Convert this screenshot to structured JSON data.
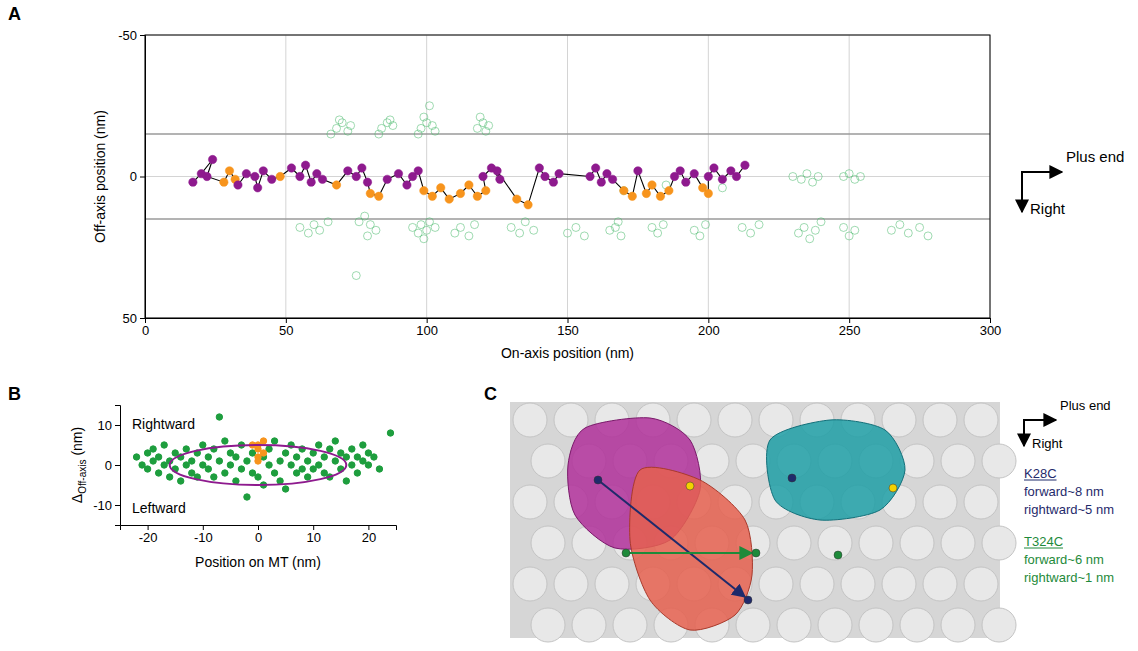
{
  "chart_data": [
    {
      "type": "scatter",
      "panel": "A",
      "x_label": "On-axis position (nm)",
      "y_label": "Off-axis position (nm)",
      "xlim": [
        0,
        300
      ],
      "ylim": [
        -50,
        50
      ],
      "xticks": [
        0,
        50,
        100,
        150,
        200,
        250,
        300
      ],
      "yticks": [
        -50,
        0,
        50
      ],
      "grid": true,
      "reference_lines": [
        -15,
        15
      ],
      "direction_labels": [
        "Plus end",
        "Right"
      ],
      "series": [
        {
          "type": "scatter",
          "color": "#4cbb6e",
          "marker": "open-circle",
          "x": [
            68,
            70,
            72,
            69,
            73,
            66,
            84,
            86,
            88,
            83,
            87,
            98,
            100,
            102,
            99,
            97,
            103,
            101,
            118,
            120,
            122,
            119,
            121,
            55,
            58,
            60,
            62,
            65,
            78,
            80,
            82,
            79,
            76,
            95,
            97,
            98,
            100,
            101,
            99,
            103,
            110,
            112,
            115,
            117,
            130,
            133,
            135,
            138,
            150,
            153,
            156,
            165,
            167,
            169,
            168,
            180,
            182,
            184,
            195,
            197,
            199,
            212,
            215,
            218,
            232,
            234,
            236,
            238,
            240,
            248,
            250,
            252,
            265,
            268,
            271,
            275,
            278,
            230,
            233,
            235,
            237,
            239,
            248,
            250,
            252,
            254,
            75,
            170,
            185,
            205
          ],
          "values": [
            -17,
            -19,
            -16,
            -20,
            -18,
            -15,
            -17,
            -19,
            -18,
            -15,
            -20,
            -17,
            -19,
            -18,
            -21,
            -15,
            -16,
            -25,
            -17,
            -19,
            -18,
            -21,
            -16,
            18,
            20,
            17,
            19,
            16,
            14,
            17,
            19,
            21,
            16,
            18,
            20,
            17,
            19,
            16,
            22,
            18,
            20,
            18,
            21,
            17,
            18,
            20,
            16,
            19,
            20,
            18,
            21,
            19,
            18,
            21,
            16,
            18,
            20,
            17,
            19,
            21,
            17,
            18,
            20,
            17,
            20,
            18,
            22,
            19,
            16,
            18,
            21,
            19,
            19,
            17,
            20,
            18,
            21,
            0,
            1,
            -1,
            2,
            0,
            0,
            -1,
            1,
            0,
            35,
            5,
            3,
            4
          ]
        },
        {
          "type": "line",
          "color": "#000000",
          "marker": "circle",
          "line_style": "solid",
          "x": [
            17,
            20,
            24,
            22,
            28,
            30,
            32,
            33,
            36,
            39,
            40,
            42,
            45,
            48,
            52,
            55,
            57,
            59,
            61,
            63,
            68,
            72,
            75,
            77,
            79,
            80,
            83,
            86,
            90,
            93,
            95,
            97,
            99,
            102,
            105,
            108,
            112,
            115,
            118,
            121,
            120,
            123,
            126,
            125,
            132,
            136,
            140,
            142,
            145,
            147,
            158,
            160,
            162,
            164,
            166,
            170,
            173,
            175,
            178,
            180,
            183,
            186,
            188,
            190,
            192,
            195,
            198,
            200,
            200,
            202,
            205,
            208,
            210,
            213
          ],
          "values": [
            2,
            -1,
            -6,
            0,
            2,
            -2,
            1,
            3,
            -1,
            0,
            4,
            -2,
            1,
            0,
            -3,
            0,
            -4,
            2,
            -1,
            1,
            3,
            -2,
            0,
            -3,
            2,
            6,
            7,
            1,
            -1,
            3,
            0,
            -2,
            5,
            7,
            4,
            8,
            6,
            3,
            7,
            5,
            0,
            -3,
            1,
            -2,
            8,
            10,
            -3,
            0,
            2,
            -1,
            0,
            -3,
            2,
            -1,
            1,
            5,
            7,
            -2,
            6,
            3,
            7,
            5,
            0,
            -2,
            2,
            -1,
            4,
            6,
            0,
            -3,
            1,
            -2,
            0,
            -4
          ],
          "colors": [
            "#8e1a8e",
            "#8e1a8e",
            "#8e1a8e",
            "#8e1a8e",
            "#f7941d",
            "#f7941d",
            "#f7941d",
            "#8e1a8e",
            "#8e1a8e",
            "#8e1a8e",
            "#8e1a8e",
            "#8e1a8e",
            "#8e1a8e",
            "#f7941d",
            "#8e1a8e",
            "#8e1a8e",
            "#8e1a8e",
            "#8e1a8e",
            "#8e1a8e",
            "#8e1a8e",
            "#f7941d",
            "#8e1a8e",
            "#8e1a8e",
            "#8e1a8e",
            "#8e1a8e",
            "#f7941d",
            "#f7941d",
            "#8e1a8e",
            "#8e1a8e",
            "#8e1a8e",
            "#8e1a8e",
            "#8e1a8e",
            "#f7941d",
            "#f7941d",
            "#f7941d",
            "#f7941d",
            "#f7941d",
            "#f7941d",
            "#f7941d",
            "#f7941d",
            "#8e1a8e",
            "#8e1a8e",
            "#8e1a8e",
            "#8e1a8e",
            "#f7941d",
            "#f7941d",
            "#8e1a8e",
            "#8e1a8e",
            "#8e1a8e",
            "#8e1a8e",
            "#8e1a8e",
            "#8e1a8e",
            "#8e1a8e",
            "#8e1a8e",
            "#8e1a8e",
            "#f7941d",
            "#f7941d",
            "#8e1a8e",
            "#f7941d",
            "#f7941d",
            "#f7941d",
            "#f7941d",
            "#8e1a8e",
            "#8e1a8e",
            "#8e1a8e",
            "#8e1a8e",
            "#f7941d",
            "#f7941d",
            "#8e1a8e",
            "#8e1a8e",
            "#8e1a8e",
            "#8e1a8e",
            "#8e1a8e",
            "#8e1a8e"
          ]
        }
      ]
    },
    {
      "type": "scatter",
      "panel": "B",
      "x_label": "Position on MT (nm)",
      "y_label": {
        "text": "Δ",
        "subscript": "Off-axis",
        "suffix": "(nm)"
      },
      "xlim": [
        -25,
        25
      ],
      "ylim": [
        -15,
        15
      ],
      "xticks": [
        -20,
        -10,
        0,
        10,
        20
      ],
      "yticks": [
        -10,
        0,
        10
      ],
      "annotations": [
        "Rightward",
        "Leftward"
      ],
      "ellipse": {
        "center": [
          0,
          0
        ],
        "radii": [
          16,
          5
        ],
        "color": "#8e1a8e"
      },
      "series": [
        {
          "type": "scatter",
          "color": "#1e9e3e",
          "marker": "circle",
          "x": [
            -22,
            -21,
            -20,
            -20,
            -19,
            -19,
            -18,
            -18,
            -17,
            -17,
            -16,
            -16,
            -15,
            -15,
            -14,
            -14,
            -13,
            -13,
            -12,
            -12,
            -11,
            -11,
            -10,
            -10,
            -9,
            -9,
            -8,
            -8,
            -7,
            -7,
            -6,
            -6,
            -5,
            -5,
            -4,
            -4,
            -3,
            -3,
            -2,
            -2,
            -1,
            -1,
            0,
            1,
            1,
            2,
            2,
            3,
            3,
            4,
            4,
            5,
            5,
            6,
            6,
            7,
            7,
            8,
            8,
            9,
            9,
            10,
            10,
            11,
            11,
            12,
            12,
            13,
            13,
            14,
            14,
            15,
            15,
            16,
            16,
            17,
            17,
            18,
            18,
            19,
            19,
            20,
            20,
            21,
            22,
            24
          ],
          "values": [
            2,
            0,
            3,
            -1,
            1,
            4,
            -2,
            2,
            0,
            5,
            -3,
            1,
            3,
            -1,
            2,
            -4,
            0,
            4,
            -2,
            1,
            3,
            -3,
            0,
            5,
            2,
            -1,
            4,
            -3,
            12,
            1,
            -2,
            6,
            0,
            3,
            -4,
            2,
            5,
            -1,
            1,
            -8,
            3,
            -2,
            -3,
            2,
            -5,
            4,
            0,
            -2,
            6,
            1,
            -4,
            3,
            -6,
            0,
            5,
            -2,
            2,
            4,
            -1,
            1,
            -3,
            3,
            -1,
            5,
            0,
            -2,
            2,
            4,
            -3,
            1,
            6,
            -1,
            3,
            2,
            -4,
            0,
            4,
            2,
            -2,
            1,
            5,
            3,
            0,
            2,
            -1,
            8
          ]
        },
        {
          "type": "scatter",
          "color": "#f7941d",
          "marker": "circle",
          "x": [
            0,
            0,
            1,
            0,
            1,
            0,
            -1
          ],
          "values": [
            4,
            5,
            3,
            2,
            6,
            1,
            5
          ]
        }
      ]
    }
  ],
  "panel_c": {
    "panel": "C",
    "direction_labels": [
      "Plus end",
      "Right"
    ],
    "measurements": [
      {
        "name": "K28C",
        "color": "#1f2a6b",
        "lines": [
          "forward~8 nm",
          "rightward~5 nm"
        ]
      },
      {
        "name": "T324C",
        "color": "#1e8a3a",
        "lines": [
          "forward~6 nm",
          "rightward~1 nm"
        ]
      }
    ]
  }
}
